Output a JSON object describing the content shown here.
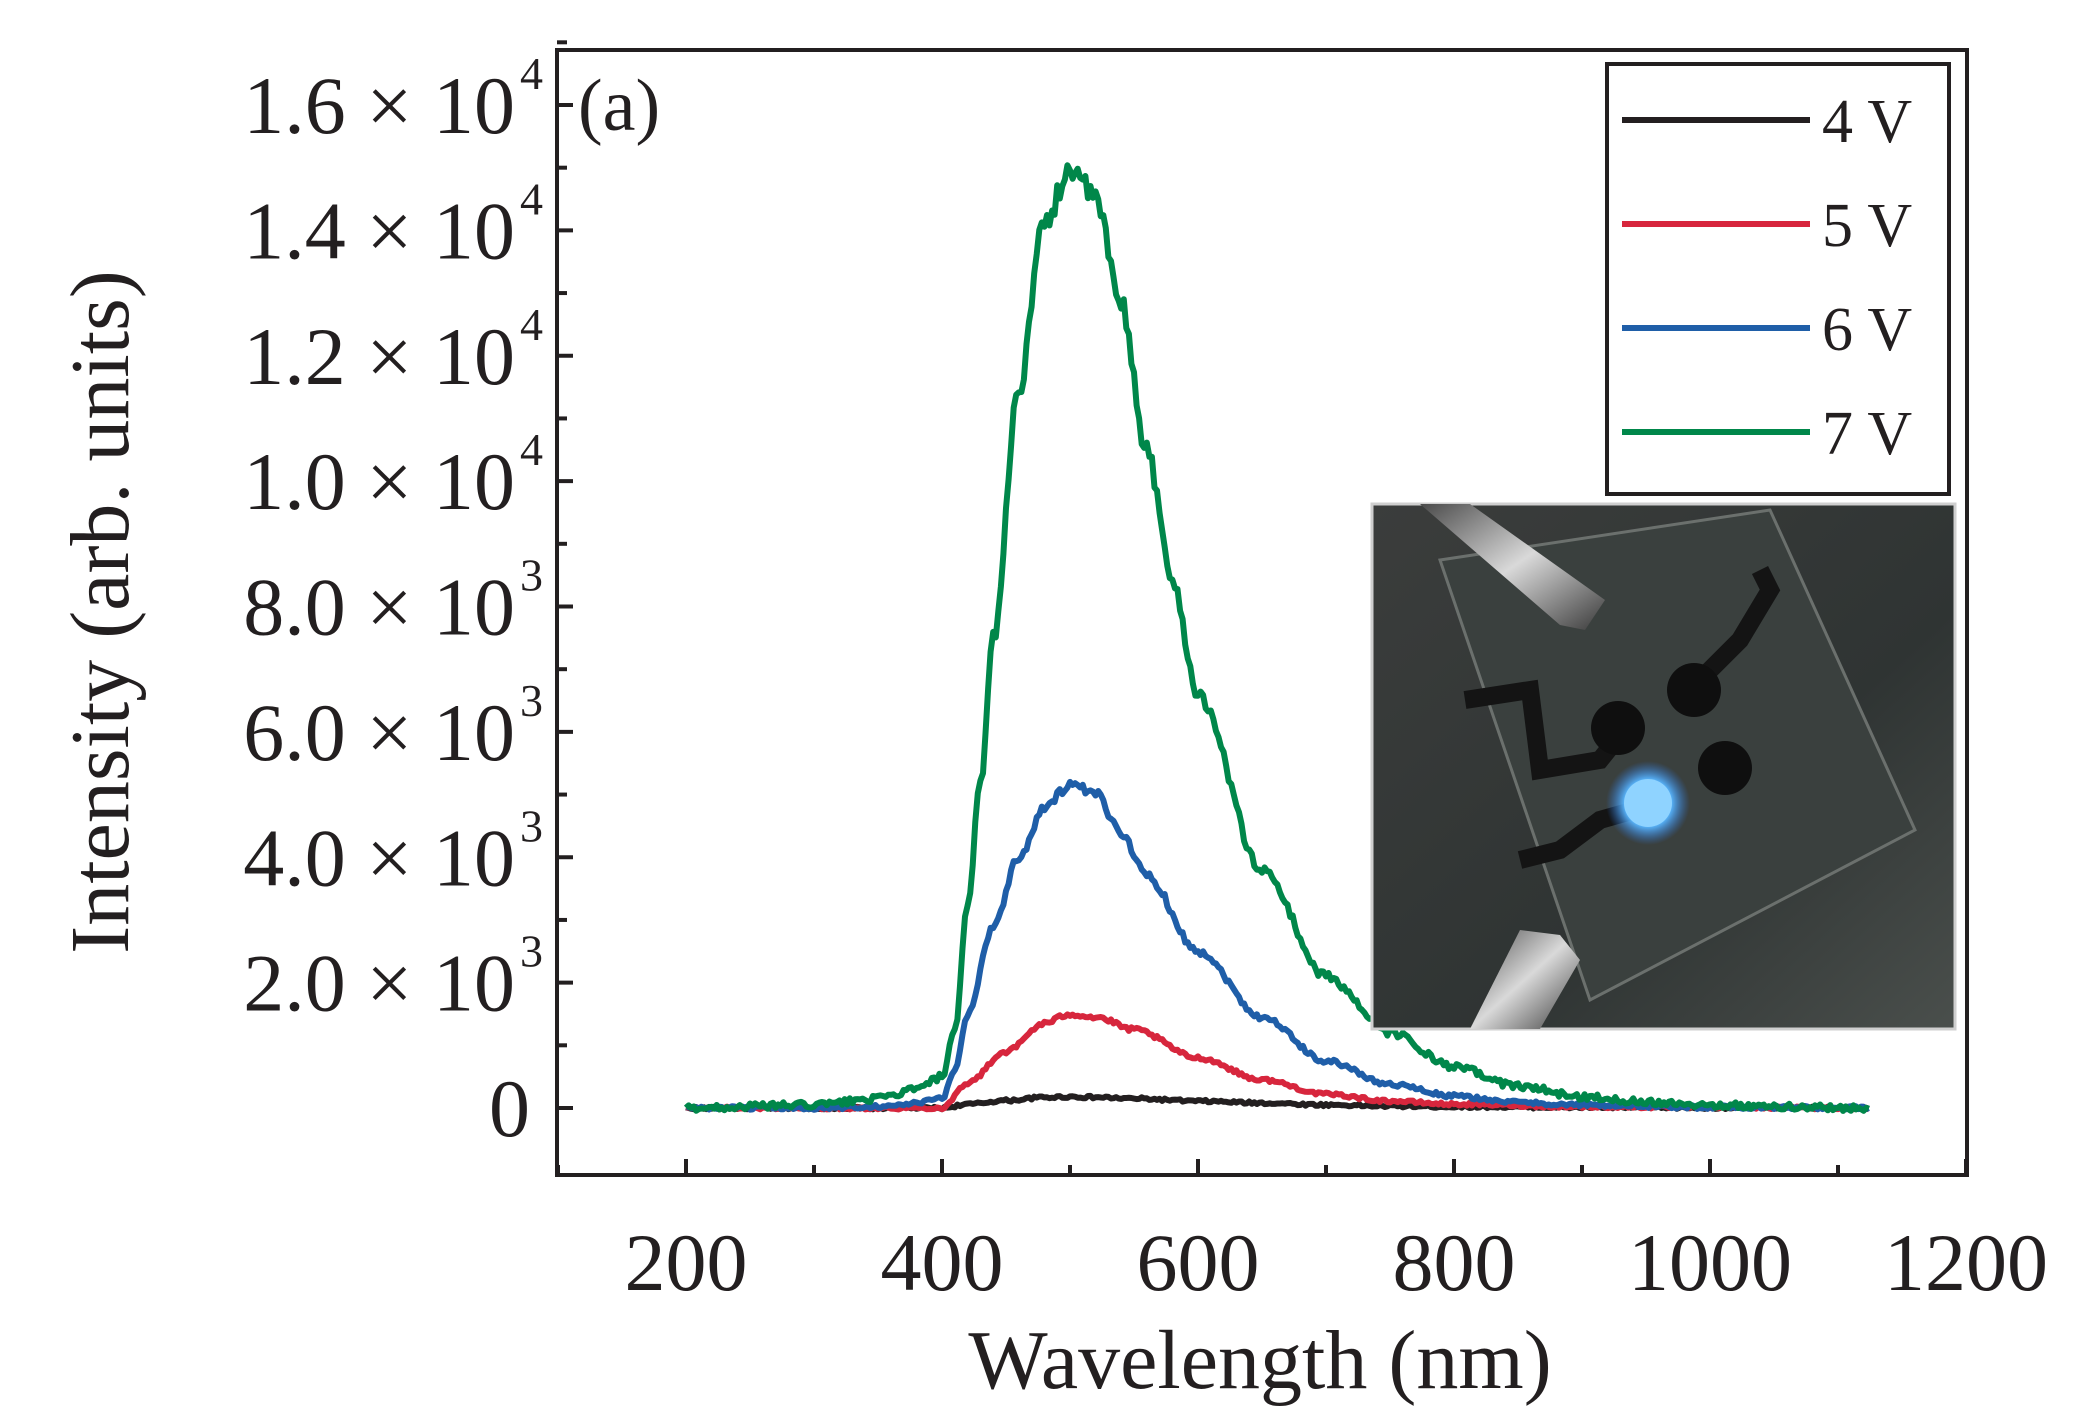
{
  "chart_data": {
    "type": "line",
    "panel_label": "(a)",
    "xlabel": "Wavelength (nm)",
    "ylabel": "Intensity (arb. units)",
    "xlim": [
      100,
      1200
    ],
    "ylim": [
      -1000,
      17000
    ],
    "x_ticks": [
      {
        "value": 200,
        "label": "200"
      },
      {
        "value": 400,
        "label": "400"
      },
      {
        "value": 600,
        "label": "600"
      },
      {
        "value": 800,
        "label": "800"
      },
      {
        "value": 1000,
        "label": "1000"
      },
      {
        "value": 1200,
        "label": "1200"
      }
    ],
    "y_ticks": [
      {
        "value": 0,
        "mantissa": "0",
        "exponent": ""
      },
      {
        "value": 2000,
        "mantissa": "2.0 × 10",
        "exponent": "3"
      },
      {
        "value": 4000,
        "mantissa": "4.0 × 10",
        "exponent": "3"
      },
      {
        "value": 6000,
        "mantissa": "6.0 × 10",
        "exponent": "3"
      },
      {
        "value": 8000,
        "mantissa": "8.0 × 10",
        "exponent": "3"
      },
      {
        "value": 10000,
        "mantissa": "1.0 × 10",
        "exponent": "4"
      },
      {
        "value": 12000,
        "mantissa": "1.2 × 10",
        "exponent": "4"
      },
      {
        "value": 14000,
        "mantissa": "1.4 × 10",
        "exponent": "4"
      },
      {
        "value": 16000,
        "mantissa": "1.6 × 10",
        "exponent": "4"
      }
    ],
    "legend_position": "top-right",
    "series": [
      {
        "name": "4 V",
        "color": "#231f20",
        "x": [
          200,
          300,
          360,
          400,
          420,
          450,
          480,
          500,
          520,
          550,
          600,
          650,
          700,
          750,
          800,
          900,
          1000,
          1125
        ],
        "y": [
          0,
          0,
          0,
          0,
          60,
          120,
          170,
          180,
          170,
          150,
          110,
          80,
          50,
          30,
          20,
          10,
          5,
          0
        ]
      },
      {
        "name": "5 V",
        "color": "#d7263d",
        "x": [
          200,
          300,
          360,
          400,
          420,
          450,
          480,
          500,
          520,
          550,
          600,
          650,
          700,
          750,
          800,
          900,
          1000,
          1125
        ],
        "y": [
          0,
          0,
          0,
          0,
          400,
          900,
          1350,
          1500,
          1450,
          1250,
          800,
          450,
          220,
          110,
          60,
          20,
          10,
          0
        ]
      },
      {
        "name": "6 V",
        "color": "#1f5ea8",
        "x": [
          200,
          300,
          360,
          380,
          400,
          410,
          420,
          440,
          460,
          480,
          500,
          520,
          540,
          560,
          600,
          650,
          700,
          750,
          800,
          850,
          900,
          1000,
          1125
        ],
        "y": [
          0,
          0,
          30,
          80,
          150,
          600,
          1500,
          2900,
          4000,
          4800,
          5150,
          5000,
          4400,
          3700,
          2500,
          1450,
          750,
          380,
          190,
          90,
          45,
          15,
          0
        ]
      },
      {
        "name": "7 V",
        "color": "#00874a",
        "x": [
          200,
          300,
          350,
          380,
          400,
          410,
          420,
          430,
          440,
          460,
          480,
          500,
          520,
          540,
          560,
          580,
          600,
          650,
          700,
          750,
          800,
          850,
          900,
          950,
          1000,
          1050,
          1125
        ],
        "y": [
          0,
          50,
          150,
          300,
          500,
          1200,
          3200,
          5200,
          7500,
          11500,
          14100,
          15000,
          14500,
          12800,
          10500,
          8400,
          6600,
          3800,
          2100,
          1200,
          650,
          350,
          180,
          100,
          50,
          20,
          0
        ]
      }
    ],
    "inset": {
      "description_visible": false
    }
  }
}
